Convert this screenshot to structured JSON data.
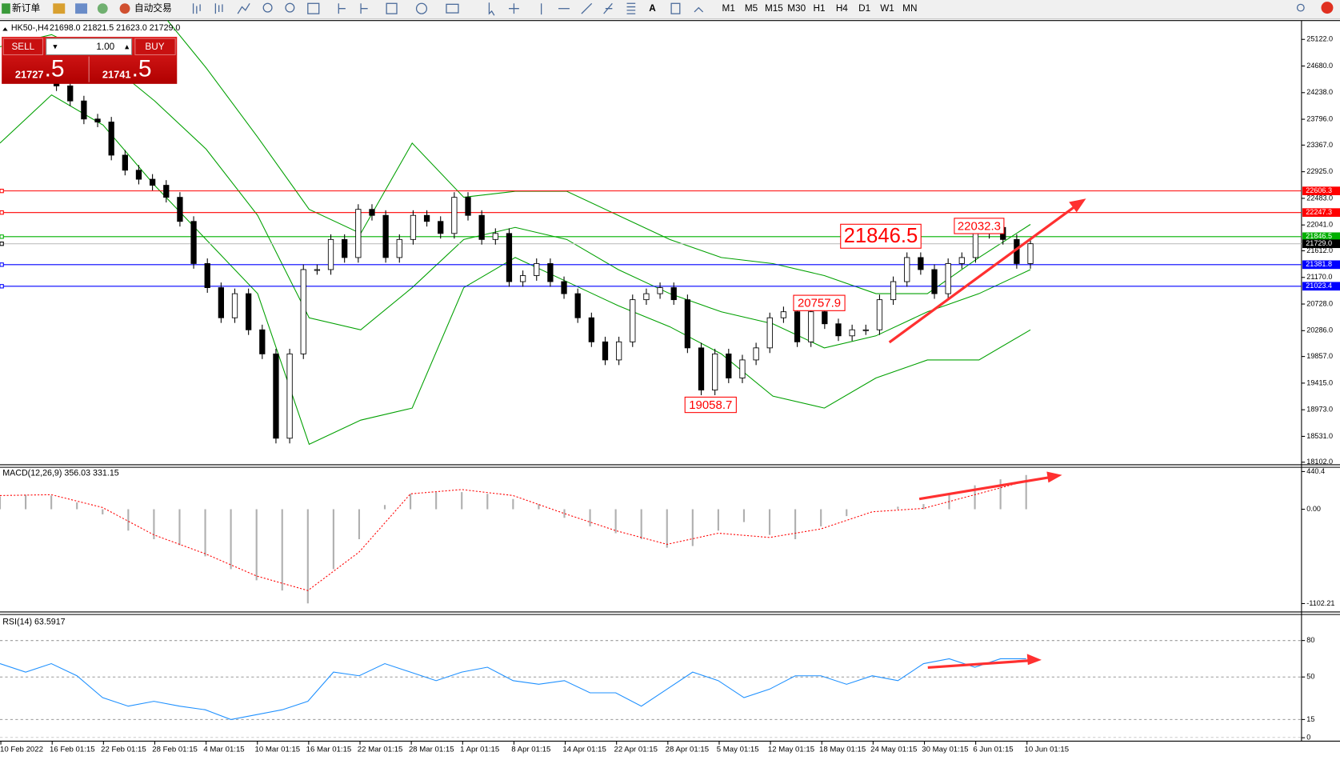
{
  "toolbar": {
    "new_order": "新订单",
    "auto_trading": "自动交易",
    "timeframes": [
      "M1",
      "M5",
      "M15",
      "M30",
      "H1",
      "H4",
      "D1",
      "W1",
      "MN"
    ]
  },
  "trade_panel": {
    "sell": "SELL",
    "buy": "BUY",
    "lots": "1.00",
    "sell_price": "21727",
    "sell_price_tail": ".5",
    "buy_price": "21741",
    "buy_price_tail": ".5"
  },
  "chart_data": [
    {
      "type": "candlestick",
      "title": "HK50-,H4",
      "ohlc": "21698.0 21821.5 21623.0 21729.0",
      "ylim": [
        18060,
        25435
      ],
      "yticks": [
        {
          "value": 25122,
          "label": "25122.0"
        },
        {
          "value": 24680,
          "label": "24680.0"
        },
        {
          "value": 24238,
          "label": "24238.0"
        },
        {
          "value": 23796,
          "label": "23796.0"
        },
        {
          "value": 23367,
          "label": "23367.0"
        },
        {
          "value": 22925,
          "label": "22925.0"
        },
        {
          "value": 22483,
          "label": "22483.0"
        },
        {
          "value": 22041,
          "label": "22041.0"
        },
        {
          "value": 21612,
          "label": "21612.0"
        },
        {
          "value": 21170,
          "label": "21170.0"
        },
        {
          "value": 20728,
          "label": "20728.0"
        },
        {
          "value": 20286,
          "label": "20286.0"
        },
        {
          "value": 19857,
          "label": "19857.0"
        },
        {
          "value": 19415,
          "label": "19415.0"
        },
        {
          "value": 18973,
          "label": "18973.0"
        },
        {
          "value": 18531,
          "label": "18531.0"
        },
        {
          "value": 18102,
          "label": "18102.0"
        }
      ],
      "closes": [
        24500,
        24350,
        24100,
        23800,
        23750,
        23200,
        22950,
        22800,
        22700,
        22500,
        22100,
        21400,
        21000,
        20500,
        20900,
        20300,
        19900,
        18500,
        19900,
        21300,
        21300,
        21800,
        21500,
        22300,
        22200,
        21500,
        21800,
        22200,
        22100,
        21900,
        22500,
        22200,
        21800,
        21900,
        21100,
        21200,
        21400,
        21100,
        20900,
        20500,
        20100,
        19800,
        20100,
        20800,
        20900,
        21000,
        20800,
        20000,
        19300,
        19900,
        19500,
        19800,
        20000,
        20500,
        20600,
        20100,
        20600,
        20400,
        20200,
        20300,
        20300,
        20800,
        21100,
        21500,
        21300,
        20900,
        21400,
        21500,
        21900,
        22000,
        21800,
        21400,
        21729
      ],
      "bands_color": "#00a000",
      "band_upper": [
        26500,
        26300,
        26000,
        25700,
        24650,
        23500,
        22300,
        21900,
        23400,
        22500,
        22600,
        22600,
        22200,
        21800,
        21500,
        21400,
        21200,
        20900,
        20900,
        21500,
        22050
      ],
      "band_middle": [
        25000,
        25200,
        24800,
        24100,
        23300,
        22200,
        20500,
        20300,
        21000,
        21800,
        22000,
        21800,
        21300,
        20900,
        20600,
        20400,
        20000,
        20200,
        20600,
        20900,
        21300
      ],
      "band_lower": [
        23400,
        24200,
        23700,
        22700,
        21800,
        20900,
        18400,
        18800,
        19000,
        21000,
        21500,
        21100,
        20700,
        20350,
        19900,
        19200,
        19000,
        19500,
        19800,
        19800,
        20300
      ],
      "levels": [
        {
          "value": 22606.3,
          "color": "#ff0000"
        },
        {
          "value": 22247.3,
          "color": "#ff0000"
        },
        {
          "value": 21846.5,
          "color": "#00b000"
        },
        {
          "value": 21729,
          "label": "21729.0",
          "color": "#000000",
          "line_color": "#c0c0c0"
        },
        {
          "value": 21381.8,
          "color": "#0000ff"
        },
        {
          "value": 21023.4,
          "color": "#0000ff"
        }
      ],
      "annotations": [
        21846.5,
        22032.3,
        20757.9,
        19058.7
      ],
      "annotation_color": "#ff0000"
    },
    {
      "type": "macd",
      "title": "MACD(12,26,9) 356.03 331.15",
      "ylim": [
        -1200,
        480
      ],
      "yticks": [
        440.4,
        {
          "value": 0,
          "label": "0.00"
        },
        -1102.21
      ],
      "histogram_color": "#b0b0b0",
      "signal_color": "#ff0000",
      "histogram_values": [
        150,
        170,
        160,
        80,
        -60,
        -250,
        -350,
        -420,
        -550,
        -700,
        -830,
        -950,
        -1100,
        -700,
        -350,
        50,
        180,
        200,
        200,
        180,
        120,
        60,
        -100,
        -200,
        -280,
        -350,
        -450,
        -430,
        -250,
        -150,
        -300,
        -350,
        -200,
        -80,
        0,
        30,
        60,
        180,
        280,
        350,
        400
      ],
      "signal_values": [
        160,
        170,
        20,
        -300,
        -520,
        -780,
        -950,
        -500,
        180,
        230,
        160,
        -50,
        -250,
        -410,
        -280,
        -330,
        -230,
        -30,
        10,
        170,
        330
      ]
    },
    {
      "type": "line",
      "title": "RSI(14) 63.5917",
      "ylim": [
        0,
        100
      ],
      "yticks": [
        80,
        50,
        15,
        0
      ],
      "grid": true,
      "color": "#1e90ff",
      "values": [
        61,
        54,
        61,
        51,
        33,
        26,
        30,
        26,
        23,
        15,
        19,
        23,
        30,
        54,
        51,
        61,
        54,
        47,
        54,
        58,
        47,
        44,
        47,
        37,
        37,
        26,
        40,
        54,
        47,
        33,
        40,
        51,
        51,
        44,
        51,
        47,
        61,
        65,
        58,
        65,
        65
      ]
    }
  ],
  "time_axis": [
    "10 Feb 2022",
    "16 Feb 01:15",
    "22 Feb 01:15",
    "28 Feb 01:15",
    "4 Mar 01:15",
    "10 Mar 01:15",
    "16 Mar 01:15",
    "22 Mar 01:15",
    "28 Mar 01:15",
    "1 Apr 01:15",
    "8 Apr 01:15",
    "14 Apr 01:15",
    "22 Apr 01:15",
    "28 Apr 01:15",
    "5 May 01:15",
    "12 May 01:15",
    "18 May 01:15",
    "24 May 01:15",
    "30 May 01:15",
    "6 Jun 01:15",
    "10 Jun 01:15"
  ]
}
